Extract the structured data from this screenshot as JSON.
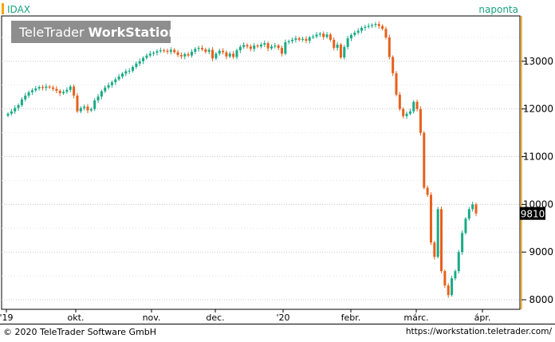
{
  "symbol": "IDAX",
  "interval": "naponta",
  "watermark": {
    "brand": "TeleTrader",
    "product": "WorkStation"
  },
  "footer": {
    "copyright": "© 2020 TeleTrader Software GmbH",
    "url": "https://workstation.teletrader.com/"
  },
  "colors": {
    "up": "#1aaa86",
    "down": "#e8601c",
    "accent": "#f7a600",
    "label_teal": "#1aa37e"
  },
  "chart_data": {
    "type": "candlestick",
    "title": "IDAX",
    "interval": "naponta",
    "ylim": [
      7800,
      13950
    ],
    "y_ticks": [
      8000,
      9000,
      10000,
      11000,
      12000,
      13000
    ],
    "x_ticks": [
      "'19",
      "okt.",
      "nov.",
      "dec.",
      "'20",
      "febr.",
      "márc.",
      "ápr."
    ],
    "last_price_label": "9810",
    "closes": [
      11900,
      11950,
      12020,
      12080,
      12200,
      12280,
      12350,
      12390,
      12430,
      12460,
      12440,
      12470,
      12450,
      12420,
      12380,
      12330,
      12360,
      12400,
      12470,
      12280,
      11950,
      12020,
      12050,
      11970,
      12000,
      12180,
      12260,
      12370,
      12450,
      12500,
      12560,
      12620,
      12680,
      12740,
      12790,
      12800,
      12880,
      12950,
      13000,
      13070,
      13120,
      13160,
      13180,
      13210,
      13230,
      13220,
      13200,
      13240,
      13190,
      13130,
      13100,
      13150,
      13120,
      13200,
      13260,
      13280,
      13250,
      13200,
      13240,
      13060,
      13160,
      13220,
      13190,
      13100,
      13160,
      13090,
      13230,
      13300,
      13340,
      13310,
      13260,
      13330,
      13310,
      13350,
      13380,
      13270,
      13310,
      13330,
      13280,
      13160,
      13400,
      13420,
      13450,
      13480,
      13450,
      13470,
      13430,
      13500,
      13520,
      13560,
      13580,
      13510,
      13560,
      13450,
      13280,
      13350,
      13080,
      13300,
      13480,
      13550,
      13600,
      13640,
      13700,
      13720,
      13740,
      13760,
      13780,
      13740,
      13680,
      13500,
      13090,
      12750,
      12300,
      12000,
      11850,
      11900,
      11950,
      12150,
      12000,
      11500,
      10350,
      10200,
      9200,
      8900,
      9900,
      8600,
      8300,
      8100,
      8450,
      8600,
      9000,
      9400,
      9700,
      9900,
      10000,
      9810
    ],
    "series": [
      {
        "name": "IDAX",
        "values": "closes"
      }
    ]
  }
}
